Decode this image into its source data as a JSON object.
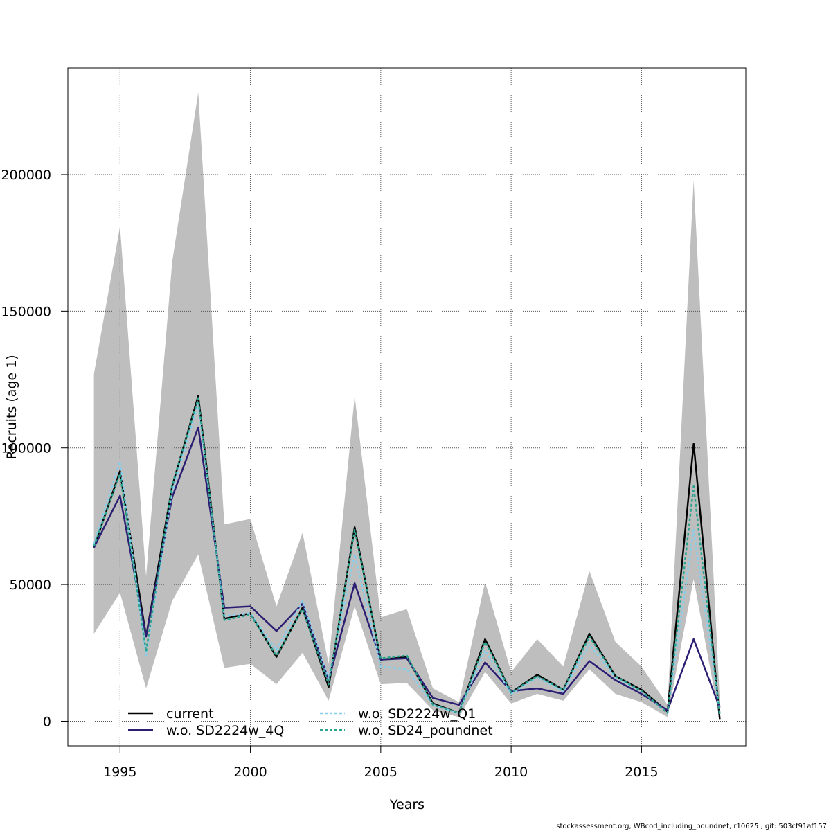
{
  "chart_data": {
    "type": "line",
    "title": "",
    "xlabel": "Years",
    "ylabel": "Recruits (age 1)",
    "xlim": [
      1993,
      2019
    ],
    "ylim": [
      -9000,
      239000
    ],
    "x_ticks": [
      1995,
      2000,
      2005,
      2010,
      2015
    ],
    "y_ticks": [
      0,
      50000,
      100000,
      150000,
      200000
    ],
    "grid": true,
    "legend_position": "bottom",
    "x": [
      1994,
      1995,
      1996,
      1997,
      1998,
      1999,
      2000,
      2001,
      2002,
      2003,
      2004,
      2005,
      2006,
      2007,
      2008,
      2009,
      2010,
      2011,
      2012,
      2013,
      2014,
      2015,
      2016,
      2017,
      2018
    ],
    "band": {
      "color": "#bebebe",
      "upper": [
        127000,
        181000,
        53000,
        168000,
        230000,
        72000,
        74000,
        42000,
        69000,
        21000,
        119000,
        38000,
        41000,
        12000,
        7000,
        51000,
        18000,
        30000,
        20000,
        55000,
        29000,
        20000,
        6000,
        198000,
        8000
      ],
      "lower": [
        32000,
        47000,
        12000,
        44000,
        61000,
        19500,
        21000,
        13500,
        25000,
        7500,
        42000,
        13500,
        14000,
        4000,
        1500,
        18000,
        6500,
        10000,
        7500,
        19000,
        10000,
        7000,
        1500,
        52000,
        300
      ]
    },
    "series": [
      {
        "name": "current",
        "color": "#000000",
        "dash": "",
        "width": 2.5,
        "values": [
          63500,
          91500,
          31000,
          86000,
          119000,
          37500,
          39500,
          23500,
          41500,
          12500,
          71000,
          22500,
          23500,
          6500,
          3000,
          30000,
          10500,
          17000,
          11500,
          32000,
          16500,
          11500,
          3500,
          101500,
          800
        ]
      },
      {
        "name": "w.o. SD2224w_4Q",
        "color": "#2b1e72",
        "dash": "",
        "width": 2.5,
        "values": [
          63500,
          82500,
          31000,
          82000,
          107500,
          41500,
          42000,
          33000,
          43000,
          15000,
          50500,
          22500,
          23000,
          8500,
          6000,
          21500,
          11000,
          12000,
          10000,
          22000,
          15000,
          10000,
          4000,
          30000,
          5000
        ]
      },
      {
        "name": "w.o. SD2224w_Q1",
        "color": "#87ceeb",
        "dash": "4,3",
        "width": 2.5,
        "values": [
          65000,
          95000,
          24000,
          84000,
          116000,
          38500,
          39500,
          26000,
          44000,
          15500,
          61000,
          20000,
          19000,
          6000,
          3000,
          26000,
          10000,
          16000,
          11000,
          28000,
          16000,
          11000,
          3000,
          70000,
          3000
        ]
      },
      {
        "name": "w.o. SD24_poundnet",
        "color": "#2aa38f",
        "dash": "4,3",
        "width": 2.5,
        "values": [
          64000,
          90500,
          25500,
          86500,
          118000,
          37000,
          39000,
          24000,
          41000,
          13500,
          70000,
          23000,
          24000,
          6000,
          3000,
          29000,
          10500,
          16500,
          11500,
          31000,
          16500,
          11000,
          3000,
          86000,
          2500
        ]
      }
    ]
  },
  "footer_text": "stockassessment.org, WBcod_including_poundnet, r10625 , git: 503cf91af157"
}
